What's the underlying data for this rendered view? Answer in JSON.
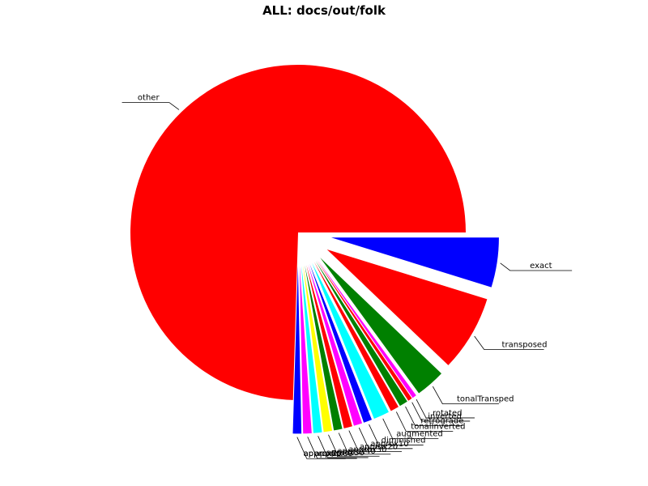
{
  "chart_data": {
    "type": "pie",
    "title": "ALL: docs/out/folk",
    "start_angle_deg": 0,
    "direction": "clockwise",
    "exploded_except": [
      "other"
    ],
    "slices": [
      {
        "label": "exact",
        "value": 4.7,
        "color": "#0000ff"
      },
      {
        "label": "transposed",
        "value": 7.2,
        "color": "#ff0000"
      },
      {
        "label": "tonalTransped",
        "value": 2.8,
        "color": "#008000"
      },
      {
        "label": "",
        "value": 0.4,
        "color": "#ff00ff"
      },
      {
        "label": "",
        "value": 0.4,
        "color": "#ff0000"
      },
      {
        "label": "",
        "value": 0.8,
        "color": "#008000"
      },
      {
        "label": "",
        "value": 0.8,
        "color": "#ff0000"
      },
      {
        "label": "",
        "value": 1.5,
        "color": "#00ffff"
      },
      {
        "label": "",
        "value": 0.8,
        "color": "#0000ff"
      },
      {
        "label": "",
        "value": 0.8,
        "color": "#ff00ff"
      },
      {
        "label": "",
        "value": 0.8,
        "color": "#ff0000"
      },
      {
        "label": "",
        "value": 0.8,
        "color": "#008000"
      },
      {
        "label": "",
        "value": 0.8,
        "color": "#ffff00"
      },
      {
        "label": "",
        "value": 0.8,
        "color": "#00ffff"
      },
      {
        "label": "",
        "value": 0.8,
        "color": "#ff00ff"
      },
      {
        "label": "",
        "value": 0.8,
        "color": "#0000ff"
      },
      {
        "label": "other",
        "value": 73.1,
        "color": "#ff0000"
      }
    ],
    "overlapping_labels": [
      "rotated",
      "inverted",
      "retrograde",
      "tonalInverted",
      "augmented",
      "diminished",
      "approx10",
      "approx20",
      "approx30",
      "approx40",
      "approx50",
      "approx60",
      "approx70",
      "approx80"
    ]
  }
}
